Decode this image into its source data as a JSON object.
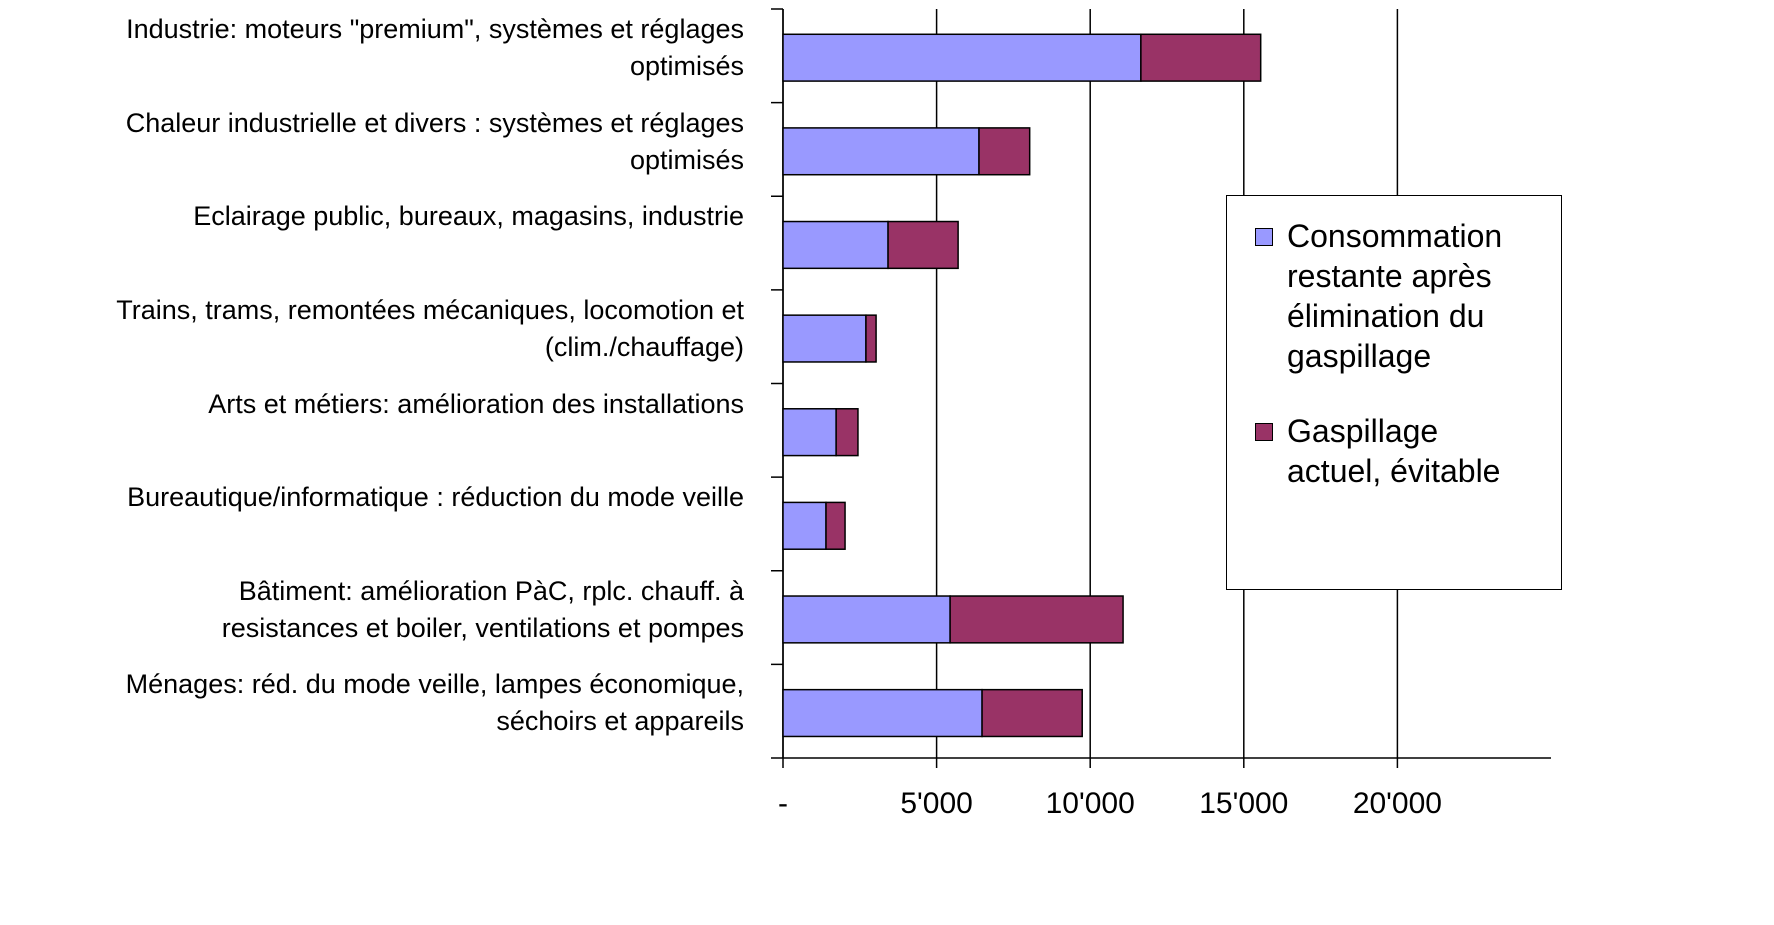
{
  "chart_data": {
    "type": "stacked-bar-horizontal",
    "categories": [
      "Industrie: moteurs \"premium\", systèmes et réglages\noptimisés",
      "Chaleur industrielle et divers : systèmes et réglages\noptimisés",
      "Eclairage public, bureaux, magasins, industrie",
      "Trains, trams, remontées mécaniques, locomotion et\n(clim./chauffage)",
      "Arts et métiers: amélioration des installations",
      "Bureautique/informatique : réduction du mode veille",
      "Bâtiment: amélioration  PàC, rplc. chauff. à\nresistances et boiler, ventilations et pompes",
      "Ménages: réd. du mode veille, lampes économique,\nséchoirs et appareils"
    ],
    "series": [
      {
        "name": "Consommation\nrestante après\nélimination du\ngaspillage",
        "color": "#9999ff",
        "values": [
          11650,
          6380,
          3420,
          2700,
          1730,
          1400,
          5440,
          6480
        ]
      },
      {
        "name": "Gaspillage\nactuel, évitable",
        "color": "#993366",
        "values": [
          3900,
          1650,
          2280,
          330,
          710,
          620,
          5630,
          3260
        ]
      }
    ],
    "xlim": [
      0,
      25000
    ],
    "xticks": [
      {
        "value": 0,
        "label": "-"
      },
      {
        "value": 5000,
        "label": "5'000"
      },
      {
        "value": 10000,
        "label": "10'000"
      },
      {
        "value": 15000,
        "label": "15'000"
      },
      {
        "value": 20000,
        "label": "20'000"
      }
    ],
    "grid": true,
    "legend": "right"
  }
}
